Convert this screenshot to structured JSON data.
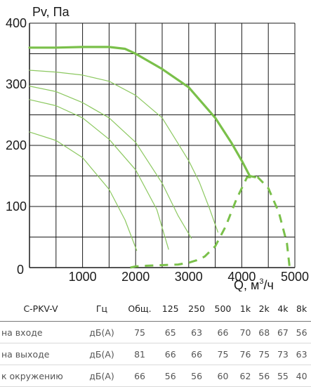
{
  "chart_data": {
    "type": "line",
    "title": "",
    "ylabel": "Pv, Па",
    "xlabel": "Q, м",
    "xlabel_sup": "3",
    "xlabel_unit_suffix": "/ч",
    "xlim": [
      0,
      5000
    ],
    "ylim": [
      0,
      400
    ],
    "xticks": [
      1000,
      2000,
      3000,
      4000,
      5000
    ],
    "yticks": [
      100,
      200,
      300,
      400
    ],
    "origin_label": "0",
    "grid": true,
    "colors": {
      "main": "#7ac04a",
      "thin": "#8cc860",
      "noise": "#7ac04a",
      "grid": "#1a1a1a"
    },
    "series": [
      {
        "role": "max",
        "style": "thick",
        "x": [
          0,
          500,
          1000,
          1500,
          1800,
          2000,
          2500,
          3000,
          3500,
          3800,
          4000,
          4150,
          4250
        ],
        "y": [
          360,
          360,
          361,
          361,
          358,
          350,
          325,
          295,
          245,
          205,
          175,
          150,
          148
        ]
      },
      {
        "role": "step",
        "style": "thin",
        "x": [
          0,
          500,
          1000,
          1500,
          2000,
          2500,
          3000,
          3200,
          3400,
          3550
        ],
        "y": [
          323,
          320,
          315,
          305,
          282,
          245,
          175,
          140,
          95,
          58
        ]
      },
      {
        "role": "step",
        "style": "thin",
        "x": [
          0,
          500,
          1000,
          1500,
          2000,
          2500,
          2800,
          3050
        ],
        "y": [
          297,
          288,
          270,
          245,
          205,
          138,
          85,
          48
        ]
      },
      {
        "role": "step",
        "style": "thin",
        "x": [
          0,
          500,
          1000,
          1500,
          2000,
          2400,
          2620
        ],
        "y": [
          275,
          265,
          245,
          210,
          160,
          95,
          30
        ]
      },
      {
        "role": "step",
        "style": "thin",
        "x": [
          0,
          500,
          1000,
          1500,
          1800,
          2020
        ],
        "y": [
          222,
          208,
          180,
          128,
          78,
          28
        ]
      },
      {
        "role": "limit",
        "style": "dashed",
        "x": [
          1900,
          2000,
          2200,
          2500,
          2800,
          3000,
          3150,
          3300,
          3500,
          3700,
          3900,
          4100,
          4300,
          4500,
          4700,
          4850,
          4900
        ],
        "y": [
          0,
          2,
          3,
          4,
          5,
          8,
          12,
          18,
          35,
          68,
          112,
          148,
          148,
          130,
          90,
          40,
          2
        ]
      }
    ]
  },
  "noise_table": {
    "headers": [
      "C-PKV-V",
      "Гц",
      "Общ.",
      "125",
      "250",
      "500",
      "1k",
      "2k",
      "4k",
      "8k"
    ],
    "rows": [
      [
        "на входе",
        "дБ(А)",
        "75",
        "65",
        "63",
        "66",
        "70",
        "68",
        "67",
        "56"
      ],
      [
        "на выходе",
        "дБ(А)",
        "81",
        "66",
        "66",
        "75",
        "76",
        "75",
        "73",
        "63"
      ],
      [
        "к окружению",
        "дБ(А)",
        "66",
        "56",
        "56",
        "60",
        "62",
        "56",
        "55",
        "40"
      ]
    ]
  }
}
